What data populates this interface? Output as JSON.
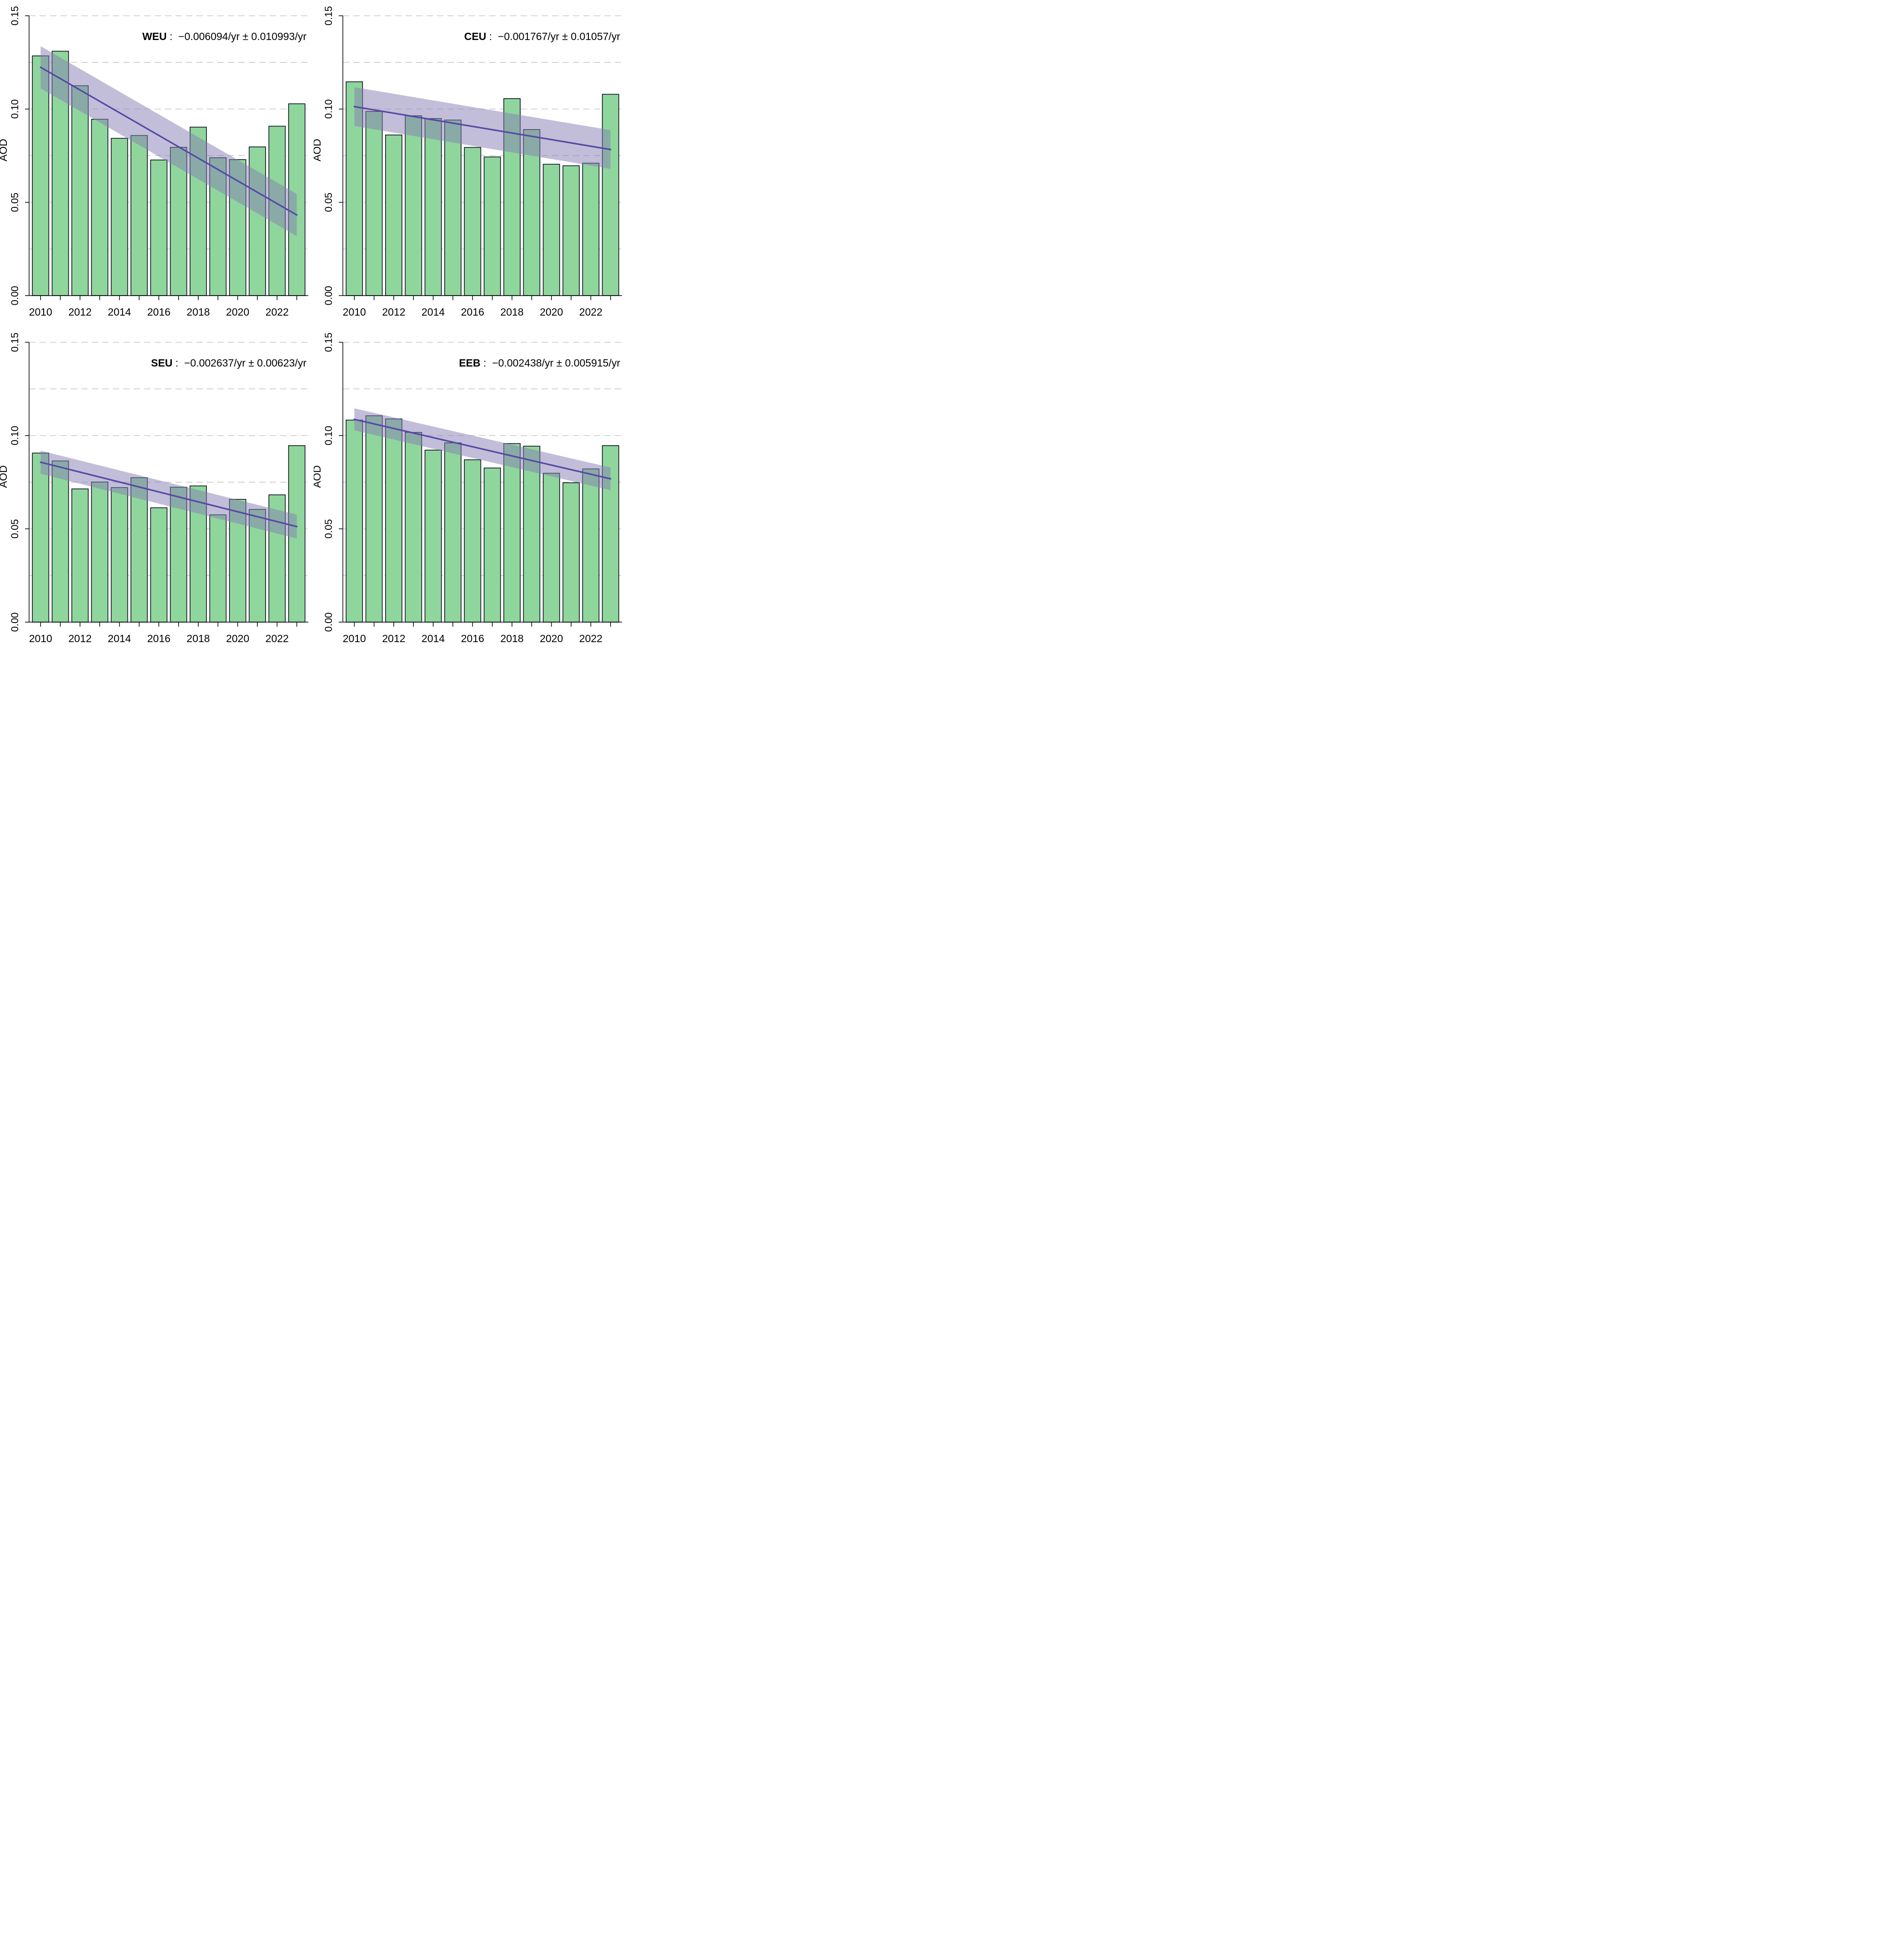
{
  "figure": {
    "background": "#ffffff",
    "ylabel": "AOD",
    "colors": {
      "bar_fill": "#8FD69C",
      "bar_border": "#0B0B1E",
      "trend_line": "#5649A5",
      "band_fill": "rgba(134,126,180,0.5)",
      "gridline": "#BFBFBF",
      "axis": "#000000",
      "text": "#000000"
    },
    "axis": {
      "ylim": [
        0,
        0.15
      ],
      "ymax_display": 0.156,
      "grid_values": [
        0.025,
        0.05,
        0.075,
        0.1,
        0.125,
        0.15
      ],
      "grid_style": "dashed",
      "yticks": [
        {
          "value": 0.0,
          "label": "0.00"
        },
        {
          "value": 0.05,
          "label": "0.05"
        },
        {
          "value": 0.1,
          "label": "0.10"
        },
        {
          "value": 0.15,
          "label": "0.15"
        }
      ],
      "xtick_years_labeled": [
        2010,
        2012,
        2014,
        2016,
        2018,
        2020,
        2022
      ]
    },
    "legend": "none"
  },
  "chart_data": [
    {
      "type": "bar",
      "region": "WEU",
      "separator": " : ",
      "stats": "−0.006094/yr ± 0.010993/yr",
      "title": "WEU :  −0.006094/yr ± 0.010993/yr",
      "xlabel": "",
      "ylabel": "AOD",
      "ylim": [
        0,
        0.15
      ],
      "categories": [
        2010,
        2011,
        2012,
        2013,
        2014,
        2015,
        2016,
        2017,
        2018,
        2019,
        2020,
        2021,
        2022,
        2023
      ],
      "values": [
        0.1285,
        0.131,
        0.1125,
        0.0945,
        0.0843,
        0.0858,
        0.0727,
        0.0795,
        0.0903,
        0.0739,
        0.0729,
        0.0797,
        0.0908,
        0.1028
      ],
      "trend": {
        "start_year": 2010,
        "end_year": 2023,
        "start": 0.1224,
        "end": 0.0432,
        "slope_per_yr": -0.006094,
        "uncertainty_per_yr": 0.010993
      },
      "band": {
        "start_half_width": 0.0113,
        "end_half_width": 0.0113
      }
    },
    {
      "type": "bar",
      "region": "CEU",
      "separator": " : ",
      "stats": "−0.001767/yr ± 0.01057/yr",
      "title": "CEU :  −0.001767/yr ± 0.01057/yr",
      "xlabel": "",
      "ylabel": "AOD",
      "ylim": [
        0,
        0.15
      ],
      "categories": [
        2010,
        2011,
        2012,
        2013,
        2014,
        2015,
        2016,
        2017,
        2018,
        2019,
        2020,
        2021,
        2022,
        2023
      ],
      "values": [
        0.1146,
        0.0987,
        0.0861,
        0.0964,
        0.0949,
        0.0941,
        0.0794,
        0.0743,
        0.1056,
        0.089,
        0.0704,
        0.0696,
        0.071,
        0.1079
      ],
      "trend": {
        "start_year": 2010,
        "end_year": 2023,
        "start": 0.1013,
        "end": 0.0783,
        "slope_per_yr": -0.001767,
        "uncertainty_per_yr": 0.01057
      },
      "band": {
        "start_half_width": 0.0104,
        "end_half_width": 0.0104
      }
    },
    {
      "type": "bar",
      "region": "SEU",
      "separator": " : ",
      "stats": "−0.002637/yr ± 0.00623/yr",
      "title": "SEU :  −0.002637/yr ± 0.00623/yr",
      "xlabel": "",
      "ylabel": "AOD",
      "ylim": [
        0,
        0.15
      ],
      "categories": [
        2010,
        2011,
        2012,
        2013,
        2014,
        2015,
        2016,
        2017,
        2018,
        2019,
        2020,
        2021,
        2022,
        2023
      ],
      "values": [
        0.0906,
        0.0864,
        0.0714,
        0.0751,
        0.0721,
        0.0774,
        0.0613,
        0.0723,
        0.073,
        0.0575,
        0.0658,
        0.0604,
        0.0682,
        0.0946
      ],
      "trend": {
        "start_year": 2010,
        "end_year": 2023,
        "start": 0.0857,
        "end": 0.0512,
        "slope_per_yr": -0.002637,
        "uncertainty_per_yr": 0.00623
      },
      "band": {
        "start_half_width": 0.0062,
        "end_half_width": 0.0064
      }
    },
    {
      "type": "bar",
      "region": "EEB",
      "separator": " : ",
      "stats": "−0.002438/yr ± 0.005915/yr",
      "title": "EEB :  −0.002438/yr ± 0.005915/yr",
      "xlabel": "",
      "ylabel": "AOD",
      "ylim": [
        0,
        0.15
      ],
      "categories": [
        2010,
        2011,
        2012,
        2013,
        2014,
        2015,
        2016,
        2017,
        2018,
        2019,
        2020,
        2021,
        2022,
        2023
      ],
      "values": [
        0.1083,
        0.1106,
        0.1089,
        0.1017,
        0.0922,
        0.0961,
        0.087,
        0.0826,
        0.0957,
        0.0943,
        0.0798,
        0.0747,
        0.0821,
        0.0946
      ],
      "trend": {
        "start_year": 2010,
        "end_year": 2023,
        "start": 0.1087,
        "end": 0.0768,
        "slope_per_yr": -0.002438,
        "uncertainty_per_yr": 0.005915
      },
      "band": {
        "start_half_width": 0.0059,
        "end_half_width": 0.0061
      }
    }
  ]
}
